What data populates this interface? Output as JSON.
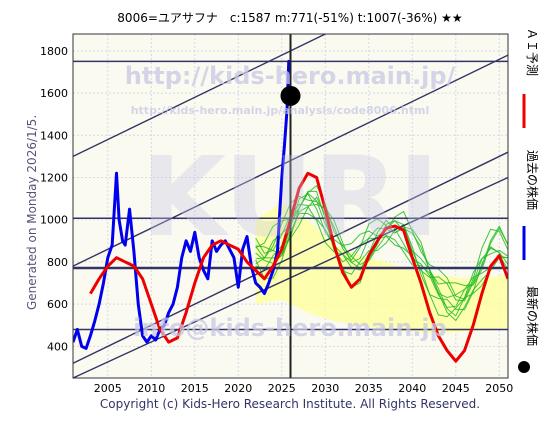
{
  "header": {
    "title": "8006=ユアサフナ　c:1587  m:771(-51%)  t:1007(-36%)  ★★"
  },
  "side": {
    "generated": "Generated on Monday 2026/1/5.",
    "legend": [
      {
        "label": "ＡＩ予測",
        "color": "#ee0000",
        "marker": "line"
      },
      {
        "label": "過去の株価",
        "color": "#0000ee",
        "marker": "line"
      },
      {
        "label": "最新の株価",
        "color": "#000000",
        "marker": "dot"
      }
    ]
  },
  "watermarks": {
    "url_main": "http://kids-hero.main.jp/",
    "url_sub": "http://kids-hero.main.jp/analysis/code8006.html",
    "logo": "KURI",
    "email": "info@kids-hero.main.jp"
  },
  "footer": {
    "copyright": "Copyright (c) Kids-Hero Research Institute. All Rights Reserved."
  },
  "colors": {
    "background": "#fafaf0",
    "past_price": "#0000ee",
    "ai_forecast": "#ee0000",
    "scenario": "#22bb22",
    "band_fill": "#ffff99",
    "trend_lines": "#333366",
    "level_lines": "#333366",
    "watermark": "#c8c8e6"
  },
  "chart_data": {
    "type": "line",
    "title": "8006=ユアサフナ　c:1587  m:771(-51%)  t:1007(-36%)  ★★",
    "xlim": [
      2001,
      2051
    ],
    "ylim": [
      250,
      1880
    ],
    "x_ticks": [
      2005,
      2010,
      2015,
      2020,
      2025,
      2030,
      2035,
      2040,
      2045,
      2050
    ],
    "y_ticks": [
      400,
      600,
      800,
      1000,
      1200,
      1400,
      1600,
      1800
    ],
    "grid": true,
    "current": {
      "x": 2026.0,
      "y": 1587
    },
    "horizontal_levels": [
      1750,
      1007,
      771,
      480
    ],
    "trend_lines": [
      {
        "from": [
          2001,
          1300
        ],
        "to": [
          2051,
          2300
        ]
      },
      {
        "from": [
          2001,
          780
        ],
        "to": [
          2051,
          1780
        ]
      },
      {
        "from": [
          2001,
          320
        ],
        "to": [
          2051,
          1320
        ]
      },
      {
        "from": [
          2001,
          250
        ],
        "to": [
          2051,
          1200
        ]
      }
    ],
    "band": {
      "x": [
        2022,
        2025,
        2028,
        2031,
        2034,
        2037,
        2040,
        2043,
        2046,
        2049,
        2051
      ],
      "upper": [
        1000,
        1080,
        1000,
        880,
        830,
        800,
        760,
        740,
        720,
        730,
        740
      ],
      "lower": [
        600,
        620,
        560,
        520,
        500,
        480,
        470,
        460,
        470,
        480,
        490
      ]
    },
    "series": [
      {
        "name": "過去の株価",
        "color": "#0000ee",
        "x": [
          2001,
          2001.5,
          2002,
          2002.5,
          2003,
          2003.5,
          2004,
          2004.5,
          2005,
          2005.5,
          2006,
          2006.3,
          2006.7,
          2007,
          2007.5,
          2008,
          2008.5,
          2009,
          2009.5,
          2010,
          2010.5,
          2011,
          2011.5,
          2012,
          2012.5,
          2013,
          2013.5,
          2014,
          2014.5,
          2015,
          2015.5,
          2016,
          2016.5,
          2017,
          2017.5,
          2018,
          2018.5,
          2019,
          2019.5,
          2020,
          2020.5,
          2021,
          2021.5,
          2022,
          2022.5,
          2023,
          2023.5,
          2024,
          2024.5,
          2025,
          2025.3,
          2025.6,
          2025.8,
          2026
        ],
        "y": [
          420,
          480,
          400,
          390,
          450,
          520,
          600,
          700,
          820,
          880,
          1220,
          1000,
          900,
          880,
          1050,
          850,
          600,
          450,
          420,
          450,
          430,
          480,
          500,
          560,
          600,
          680,
          820,
          900,
          850,
          940,
          820,
          760,
          720,
          900,
          850,
          880,
          900,
          860,
          820,
          680,
          860,
          920,
          780,
          700,
          680,
          650,
          700,
          760,
          850,
          1200,
          1350,
          1520,
          1750,
          1587
        ]
      },
      {
        "name": "ＡＩ予測",
        "color": "#ee0000",
        "x": [
          2003,
          2004,
          2005,
          2006,
          2007,
          2008,
          2009,
          2010,
          2011,
          2012,
          2013,
          2014,
          2015,
          2016,
          2017,
          2018,
          2019,
          2020,
          2021,
          2022,
          2023,
          2024,
          2025,
          2026,
          2027,
          2028,
          2029,
          2030,
          2031,
          2032,
          2033,
          2034,
          2035,
          2036,
          2037,
          2038,
          2039,
          2040,
          2041,
          2042,
          2043,
          2044,
          2045,
          2046,
          2047,
          2048,
          2049,
          2050,
          2051
        ],
        "y": [
          650,
          720,
          780,
          820,
          800,
          780,
          720,
          600,
          480,
          420,
          440,
          560,
          700,
          820,
          880,
          900,
          880,
          860,
          800,
          760,
          720,
          780,
          860,
          1000,
          1150,
          1220,
          1200,
          1050,
          880,
          750,
          680,
          720,
          830,
          900,
          960,
          970,
          950,
          820,
          700,
          560,
          450,
          380,
          330,
          380,
          500,
          650,
          780,
          830,
          720
        ]
      }
    ]
  }
}
